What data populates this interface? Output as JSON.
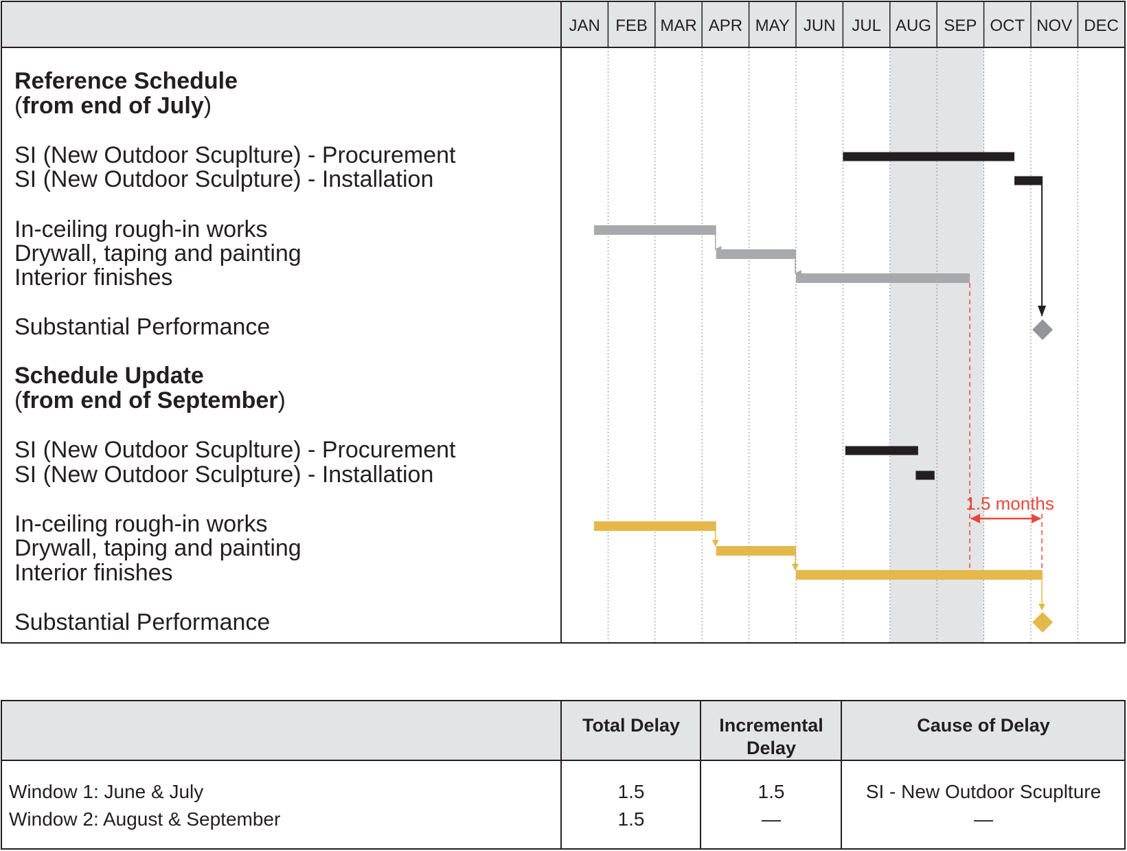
{
  "chart_data": {
    "type": "gantt",
    "months": [
      "JAN",
      "FEB",
      "MAR",
      "APR",
      "MAY",
      "JUN",
      "JUL",
      "AUG",
      "SEP",
      "OCT",
      "NOV",
      "DEC"
    ],
    "highlight_months": [
      "AUG",
      "SEP"
    ],
    "colors": {
      "reference": "#a7a9ac",
      "update": "#e5b84b",
      "si": "#231f20",
      "annotation": "#e8473b",
      "shade": "#e3e4e6",
      "milestone_ref": "#939598"
    },
    "sections": [
      {
        "title": "Reference Schedule",
        "subtitle_open": "(",
        "subtitle_bold": "from end of July",
        "subtitle_close": ")",
        "tasks": [
          {
            "name": "SI (New Outdoor Scuplture) - Procurement",
            "start": 6.0,
            "end": 9.65,
            "color": "si"
          },
          {
            "name": "SI (New Outdoor Sculpture) - Installation",
            "start": 9.65,
            "end": 10.25,
            "color": "si"
          },
          {
            "name": "In-ceiling rough-in works",
            "start": 0.7,
            "end": 3.3,
            "color": "reference"
          },
          {
            "name": "Drywall, taping and painting",
            "start": 3.3,
            "end": 5.0,
            "color": "reference"
          },
          {
            "name": "Interior finishes",
            "start": 5.0,
            "end": 8.7,
            "color": "reference"
          },
          {
            "name": "Substantial Performance",
            "milestone": 10.25,
            "color": "milestone_ref"
          }
        ]
      },
      {
        "title": "Schedule Update",
        "subtitle_open": "(",
        "subtitle_bold": "from end of September",
        "subtitle_close": ")",
        "tasks": [
          {
            "name": "SI (New Outdoor Scuplture) - Procurement",
            "start": 6.05,
            "end": 7.6,
            "color": "si"
          },
          {
            "name": "SI (New Outdoor Sculpture) - Installation",
            "start": 7.55,
            "end": 7.95,
            "color": "si"
          },
          {
            "name": "In-ceiling rough-in works",
            "start": 0.7,
            "end": 3.3,
            "color": "update"
          },
          {
            "name": "Drywall, taping and painting",
            "start": 3.3,
            "end": 5.0,
            "color": "update"
          },
          {
            "name": "Interior finishes",
            "start": 5.0,
            "end": 10.25,
            "color": "update"
          },
          {
            "name": "Substantial Performance",
            "milestone": 10.25,
            "color": "update"
          }
        ]
      }
    ],
    "annotation": {
      "label": "1.5 months",
      "from": 8.7,
      "to": 10.25
    }
  },
  "delay_table": {
    "headers": [
      "",
      "Total Delay",
      "Incremental\nDelay",
      "Cause of Delay"
    ],
    "rows": [
      {
        "window": "Window 1: June & July",
        "total": "1.5",
        "incremental": "1.5",
        "cause": "SI - New Outdoor Scuplture"
      },
      {
        "window": "Window 2: August & September",
        "total": "1.5",
        "incremental": "—",
        "cause": "—"
      }
    ]
  }
}
